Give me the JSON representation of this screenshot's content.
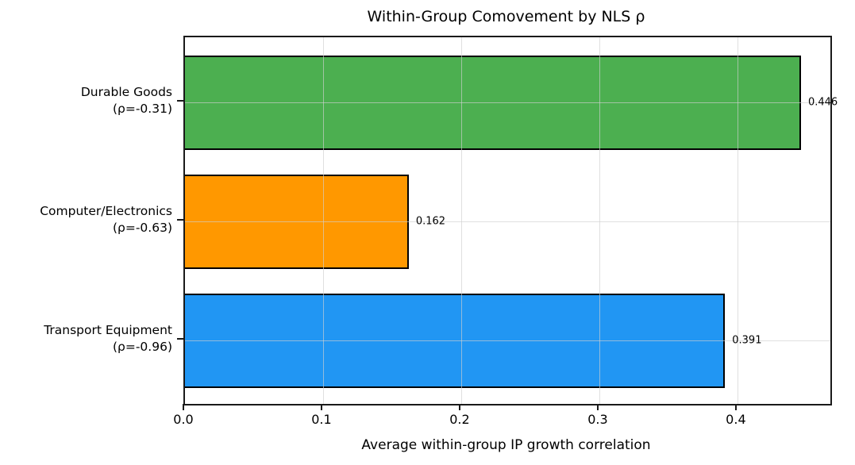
{
  "chart_data": {
    "type": "bar",
    "orientation": "horizontal",
    "title": "Within-Group Comovement by NLS ρ",
    "xlabel": "Average within-group IP growth correlation",
    "ylabel": "",
    "categories": [
      {
        "label": "Durable Goods",
        "sublabel": "(ρ=-0.31)",
        "value": 0.446,
        "value_label": "0.446",
        "color": "#4CAF50"
      },
      {
        "label": "Computer/Electronics",
        "sublabel": "(ρ=-0.63)",
        "value": 0.162,
        "value_label": "0.162",
        "color": "#FF9800"
      },
      {
        "label": "Transport Equipment",
        "sublabel": "(ρ=-0.96)",
        "value": 0.391,
        "value_label": "0.391",
        "color": "#2196F3"
      }
    ],
    "xticks": [
      0.0,
      0.1,
      0.2,
      0.3,
      0.4
    ],
    "xtick_labels": [
      "0.0",
      "0.1",
      "0.2",
      "0.3",
      "0.4"
    ],
    "xlim": [
      0,
      0.4673
    ],
    "grid": true,
    "legend": "none",
    "bar_edge_color": "#000000",
    "axes_edge_color": "#1a1a1a"
  }
}
